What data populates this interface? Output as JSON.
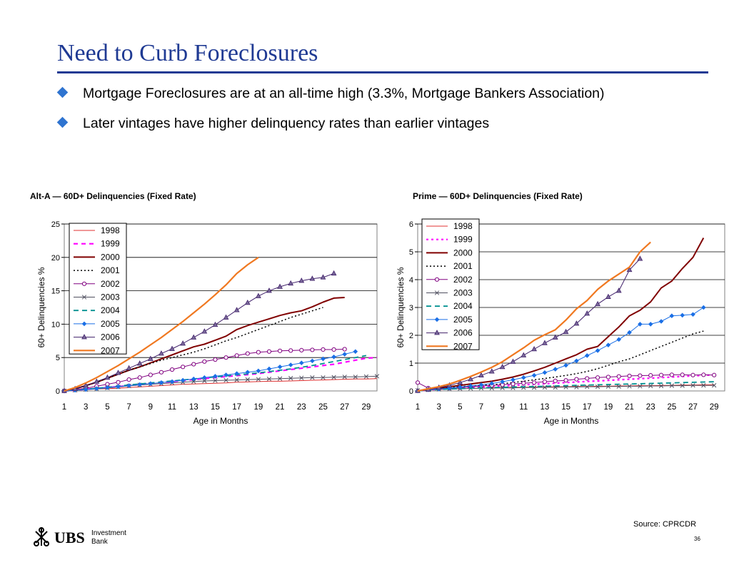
{
  "slide": {
    "title": "Need to Curb Foreclosures",
    "bullets": [
      "Mortgage Foreclosures are at an all-time high (3.3%, Mortgage Bankers Association)",
      "Later vintages have higher delinquency rates than earlier vintages"
    ],
    "source": "Source: CPRCDR",
    "page_number": "36",
    "logo": {
      "brand": "UBS",
      "line1": "Investment",
      "line2": "Bank"
    },
    "colors": {
      "title": "#1f3a93",
      "bullet": "#2f74d0"
    }
  },
  "chart_data": [
    {
      "type": "line",
      "title": "Alt-A  — 60D+ Delinquencies  (Fixed Rate)",
      "xlabel": "Age in Months",
      "ylabel": "60+ Delinquencies %",
      "ylim": [
        0,
        25
      ],
      "yticks": [
        "0",
        "5",
        "10",
        "15",
        "20",
        "25"
      ],
      "xticks": [
        "1",
        "3",
        "5",
        "7",
        "9",
        "11",
        "13",
        "15",
        "17",
        "19",
        "21",
        "23",
        "25",
        "27",
        "29"
      ],
      "legend": "top-left",
      "grid": true,
      "series": [
        {
          "name": "1998",
          "color": "#e03030",
          "dash": "",
          "marker": "",
          "width": 1,
          "values": [
            0,
            0.1,
            0.2,
            0.3,
            0.35,
            0.4,
            0.5,
            0.6,
            0.7,
            0.8,
            0.9,
            1.0,
            1.05,
            1.1,
            1.15,
            1.2,
            1.3,
            1.35,
            1.4,
            1.45,
            1.45,
            1.5,
            1.55,
            1.6,
            1.65,
            1.7,
            1.75,
            1.8,
            1.8,
            1.85
          ]
        },
        {
          "name": "1999",
          "color": "#ff00ff",
          "dash": "6,5",
          "marker": "",
          "width": 2.2,
          "values": [
            0,
            0.1,
            0.25,
            0.4,
            0.5,
            0.65,
            0.8,
            0.95,
            1.1,
            1.25,
            1.4,
            1.55,
            1.7,
            1.85,
            2.0,
            2.15,
            2.3,
            2.45,
            2.6,
            2.8,
            3.0,
            3.2,
            3.4,
            3.6,
            3.8,
            4.0,
            4.3,
            4.6,
            4.9,
            5.0
          ]
        },
        {
          "name": "2000",
          "color": "#800000",
          "dash": "",
          "marker": "",
          "width": 2,
          "values": [
            0,
            0.3,
            0.8,
            1.3,
            1.9,
            2.5,
            3.1,
            3.6,
            4.2,
            4.8,
            5.4,
            6.0,
            6.6,
            7.0,
            7.6,
            8.2,
            9.2,
            9.8,
            10.3,
            10.8,
            11.3,
            11.7,
            12.0,
            12.6,
            13.3,
            13.9,
            14.0
          ]
        },
        {
          "name": "2001",
          "color": "#000000",
          "dash": "2,3",
          "marker": "",
          "width": 1.5,
          "values": [
            0,
            0.3,
            0.8,
            1.3,
            1.9,
            2.5,
            3.1,
            3.6,
            4.1,
            4.6,
            5.0,
            5.4,
            5.8,
            6.3,
            6.9,
            7.5,
            8.0,
            8.6,
            9.2,
            9.8,
            10.4,
            11.0,
            11.5,
            12.0,
            12.5
          ]
        },
        {
          "name": "2002",
          "color": "#800080",
          "dash": "",
          "marker": "circle",
          "width": 1,
          "values": [
            0,
            0.2,
            0.4,
            0.7,
            1.0,
            1.3,
            1.7,
            2.0,
            2.4,
            2.8,
            3.2,
            3.6,
            4.0,
            4.4,
            4.7,
            5.0,
            5.3,
            5.6,
            5.8,
            5.9,
            6.0,
            6.05,
            6.1,
            6.15,
            6.2,
            6.2,
            6.25
          ]
        },
        {
          "name": "2003",
          "color": "#505060",
          "dash": "",
          "marker": "x",
          "width": 1,
          "values": [
            0,
            0.1,
            0.2,
            0.3,
            0.45,
            0.6,
            0.75,
            0.9,
            1.0,
            1.1,
            1.2,
            1.3,
            1.4,
            1.5,
            1.55,
            1.6,
            1.65,
            1.7,
            1.75,
            1.8,
            1.85,
            1.9,
            1.95,
            2.0,
            2.0,
            2.05,
            2.1,
            2.1,
            2.15,
            2.2
          ]
        },
        {
          "name": "2004",
          "color": "#009090",
          "dash": "7,5",
          "marker": "",
          "width": 1.8,
          "values": [
            0,
            0.1,
            0.25,
            0.4,
            0.55,
            0.7,
            0.9,
            1.05,
            1.2,
            1.35,
            1.5,
            1.65,
            1.8,
            1.95,
            2.1,
            2.25,
            2.4,
            2.55,
            2.7,
            2.9,
            3.1,
            3.3,
            3.55,
            3.8,
            4.1,
            4.4,
            4.7,
            5.0,
            5.3
          ]
        },
        {
          "name": "2005",
          "color": "#1a6fe6",
          "dash": "",
          "marker": "diamond",
          "width": 1,
          "values": [
            0,
            0.1,
            0.2,
            0.35,
            0.5,
            0.65,
            0.8,
            0.95,
            1.1,
            1.25,
            1.4,
            1.6,
            1.8,
            2.0,
            2.2,
            2.4,
            2.6,
            2.8,
            3.0,
            3.3,
            3.6,
            3.9,
            4.2,
            4.5,
            4.8,
            5.1,
            5.5,
            5.9
          ]
        },
        {
          "name": "2006",
          "color": "#40206a",
          "dash": "",
          "marker": "triangle",
          "width": 1,
          "values": [
            0,
            0.3,
            0.8,
            1.4,
            2.0,
            2.7,
            3.4,
            4.1,
            4.8,
            5.6,
            6.3,
            7.1,
            8.0,
            8.9,
            9.9,
            11.0,
            12.1,
            13.2,
            14.2,
            15.0,
            15.6,
            16.1,
            16.5,
            16.8,
            17.0,
            17.6
          ]
        },
        {
          "name": "2007",
          "color": "#f07820",
          "dash": "",
          "marker": "",
          "width": 2.2,
          "values": [
            0,
            0.5,
            1.2,
            2.0,
            2.9,
            3.8,
            4.8,
            5.8,
            6.9,
            8.0,
            9.2,
            10.4,
            11.7,
            13.0,
            14.4,
            15.9,
            17.6,
            18.9,
            20.0
          ]
        }
      ]
    },
    {
      "type": "line",
      "title": "Prime — 60D+ Delinquencies  (Fixed Rate)",
      "xlabel": "Age in Months",
      "ylabel": "60+ Delinquencies %",
      "ylim": [
        0,
        6
      ],
      "yticks": [
        "0",
        "1",
        "2",
        "3",
        "4",
        "5",
        "6"
      ],
      "xticks": [
        "1",
        "3",
        "5",
        "7",
        "9",
        "11",
        "13",
        "15",
        "17",
        "19",
        "21",
        "23",
        "25",
        "27",
        "29"
      ],
      "legend": "top-left",
      "grid": true,
      "series": [
        {
          "name": "1998",
          "color": "#e03030",
          "dash": "",
          "marker": "",
          "width": 1,
          "values": [
            0,
            0.03,
            0.05,
            0.07,
            0.08,
            0.09,
            0.1,
            0.11,
            0.12,
            0.13,
            0.13,
            0.14,
            0.14,
            0.15,
            0.15,
            0.16,
            0.16,
            0.17,
            0.17,
            0.18,
            0.18,
            0.19,
            0.19,
            0.2,
            0.2,
            0.21,
            0.21,
            0.22,
            0.22
          ]
        },
        {
          "name": "1999",
          "color": "#ff00ff",
          "dash": "3,4",
          "marker": "",
          "width": 2.2,
          "values": [
            0,
            0.04,
            0.06,
            0.08,
            0.1,
            0.12,
            0.14,
            0.16,
            0.18,
            0.2,
            0.22,
            0.24,
            0.26,
            0.28,
            0.3,
            0.32,
            0.34,
            0.36,
            0.38,
            0.4,
            0.42,
            0.44,
            0.46,
            0.48,
            0.5,
            0.52,
            0.54,
            0.56,
            0.58
          ]
        },
        {
          "name": "2000",
          "color": "#800000",
          "dash": "",
          "marker": "",
          "width": 2,
          "values": [
            0,
            0.05,
            0.1,
            0.15,
            0.2,
            0.25,
            0.3,
            0.35,
            0.42,
            0.5,
            0.6,
            0.72,
            0.85,
            1.0,
            1.15,
            1.3,
            1.5,
            1.6,
            1.95,
            2.3,
            2.7,
            2.9,
            3.2,
            3.7,
            3.95,
            4.4,
            4.8,
            5.5
          ]
        },
        {
          "name": "2001",
          "color": "#000000",
          "dash": "2,3",
          "marker": "",
          "width": 1.5,
          "values": [
            0,
            0.04,
            0.08,
            0.12,
            0.15,
            0.18,
            0.2,
            0.22,
            0.26,
            0.3,
            0.35,
            0.4,
            0.45,
            0.5,
            0.56,
            0.62,
            0.7,
            0.8,
            0.92,
            1.05,
            1.15,
            1.3,
            1.45,
            1.6,
            1.75,
            1.9,
            2.05,
            2.15
          ]
        },
        {
          "name": "2002",
          "color": "#800080",
          "dash": "",
          "marker": "circle",
          "width": 1,
          "values": [
            0.3,
            0.1,
            0.08,
            0.1,
            0.12,
            0.15,
            0.18,
            0.2,
            0.22,
            0.25,
            0.28,
            0.3,
            0.33,
            0.36,
            0.38,
            0.42,
            0.45,
            0.48,
            0.5,
            0.52,
            0.54,
            0.55,
            0.56,
            0.57,
            0.58,
            0.58,
            0.57,
            0.58,
            0.57
          ]
        },
        {
          "name": "2003",
          "color": "#505060",
          "dash": "",
          "marker": "x",
          "width": 1,
          "values": [
            0.02,
            0.04,
            0.06,
            0.07,
            0.08,
            0.09,
            0.1,
            0.1,
            0.11,
            0.11,
            0.12,
            0.12,
            0.13,
            0.13,
            0.14,
            0.14,
            0.15,
            0.15,
            0.16,
            0.16,
            0.17,
            0.17,
            0.18,
            0.18,
            0.19,
            0.19,
            0.2,
            0.2,
            0.2
          ]
        },
        {
          "name": "2004",
          "color": "#009090",
          "dash": "7,5",
          "marker": "",
          "width": 1.8,
          "values": [
            0,
            0.03,
            0.05,
            0.07,
            0.08,
            0.1,
            0.11,
            0.12,
            0.13,
            0.14,
            0.15,
            0.16,
            0.17,
            0.18,
            0.19,
            0.2,
            0.21,
            0.22,
            0.23,
            0.24,
            0.25,
            0.26,
            0.27,
            0.28,
            0.29,
            0.3,
            0.31,
            0.32,
            0.33
          ]
        },
        {
          "name": "2005",
          "color": "#1a6fe6",
          "dash": "",
          "marker": "diamond",
          "width": 1,
          "values": [
            0,
            0.04,
            0.07,
            0.1,
            0.14,
            0.18,
            0.22,
            0.27,
            0.33,
            0.4,
            0.48,
            0.56,
            0.66,
            0.78,
            0.92,
            1.08,
            1.27,
            1.45,
            1.65,
            1.85,
            2.1,
            2.4,
            2.4,
            2.5,
            2.7,
            2.72,
            2.75,
            3.0
          ]
        },
        {
          "name": "2006",
          "color": "#40206a",
          "dash": "",
          "marker": "triangle",
          "width": 1,
          "values": [
            0,
            0.05,
            0.12,
            0.2,
            0.3,
            0.42,
            0.56,
            0.7,
            0.86,
            1.05,
            1.28,
            1.5,
            1.72,
            1.92,
            2.12,
            2.42,
            2.78,
            3.12,
            3.38,
            3.6,
            4.35,
            4.75
          ]
        },
        {
          "name": "2007",
          "color": "#f07820",
          "dash": "",
          "marker": "",
          "width": 2.2,
          "values": [
            0,
            0.08,
            0.15,
            0.25,
            0.38,
            0.52,
            0.68,
            0.85,
            1.05,
            1.3,
            1.55,
            1.82,
            2.02,
            2.2,
            2.55,
            2.95,
            3.25,
            3.65,
            3.95,
            4.2,
            4.45,
            5.0,
            5.35
          ]
        }
      ]
    }
  ]
}
